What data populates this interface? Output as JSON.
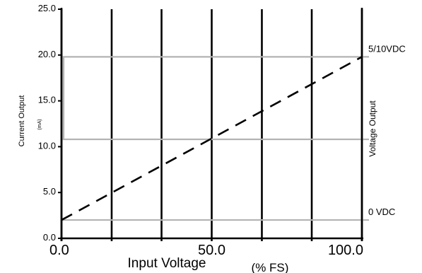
{
  "chart_data": {
    "type": "line",
    "xlabel": "Input Voltage",
    "xunit": "(% FS)",
    "ylabel": "Current Output",
    "yunit": "(mA)",
    "y2label": "Voltage Output",
    "xlim": [
      0,
      100
    ],
    "ylim": [
      0,
      25
    ],
    "x_tick_labels": [
      {
        "x": 0,
        "label": "0.0"
      },
      {
        "x": 50,
        "label": "50.0"
      },
      {
        "x": 100,
        "label": "100.0"
      }
    ],
    "y_tick_labels": [
      {
        "y": 0,
        "label": "0.0"
      },
      {
        "y": 5,
        "label": "5.0"
      },
      {
        "y": 10,
        "label": "10.0"
      },
      {
        "y": 15,
        "label": "15.0"
      },
      {
        "y": 20,
        "label": "20.0"
      },
      {
        "y": 25,
        "label": "25.0"
      }
    ],
    "vertical_gridlines_x": [
      0,
      16.7,
      33.3,
      50,
      66.7,
      83.3,
      100
    ],
    "reference_lines": [
      {
        "y": 2.0,
        "label": "0 VDC",
        "color": "#b3b3b3"
      },
      {
        "y": 10.8,
        "label": "",
        "color": "#b3b3b3"
      },
      {
        "y": 19.8,
        "label": "5/10VDC",
        "color": "#b3b3b3"
      }
    ],
    "series": [
      {
        "style": "dashed",
        "color": "#000000",
        "x": [
          0,
          100
        ],
        "y": [
          2.0,
          19.8
        ]
      }
    ],
    "bracket": {
      "x": 0.7,
      "y_from": 10.8,
      "y_to": 19.8,
      "color": "#b3b3b3"
    },
    "grid": "vertical-only"
  }
}
